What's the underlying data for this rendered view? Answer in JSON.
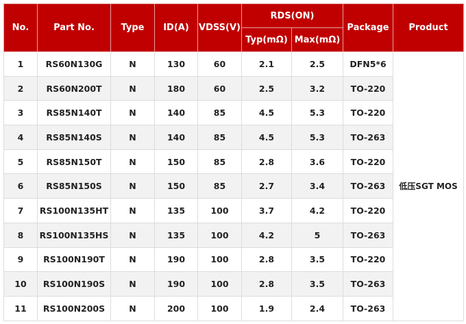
{
  "headers": {
    "no": "No.",
    "part_no": "Part No.",
    "type": "Type",
    "id": "ID(A)",
    "vdss": "VDSS(V)",
    "rds_on": "RDS(ON)",
    "typ": "Typ(mΩ)",
    "max": "Max(mΩ)",
    "package": "Package",
    "product": "Product"
  },
  "product": "低压SGT MOS",
  "colors": {
    "header_bg": "#c00000",
    "alt_row_bg": "#f2f2f2"
  },
  "rows": [
    {
      "no": "1",
      "part": "RS60N130G",
      "type": "N",
      "id": "130",
      "vdss": "60",
      "typ": "2.1",
      "max": "2.5",
      "package": "DFN5*6"
    },
    {
      "no": "2",
      "part": "RS60N200T",
      "type": "N",
      "id": "180",
      "vdss": "60",
      "typ": "2.5",
      "max": "3.2",
      "package": "TO-220"
    },
    {
      "no": "3",
      "part": "RS85N140T",
      "type": "N",
      "id": "140",
      "vdss": "85",
      "typ": "4.5",
      "max": "5.3",
      "package": "TO-220"
    },
    {
      "no": "4",
      "part": "RS85N140S",
      "type": "N",
      "id": "140",
      "vdss": "85",
      "typ": "4.5",
      "max": "5.3",
      "package": "TO-263"
    },
    {
      "no": "5",
      "part": "RS85N150T",
      "type": "N",
      "id": "150",
      "vdss": "85",
      "typ": "2.8",
      "max": "3.6",
      "package": "TO-220"
    },
    {
      "no": "6",
      "part": "RS85N150S",
      "type": "N",
      "id": "150",
      "vdss": "85",
      "typ": "2.7",
      "max": "3.4",
      "package": "TO-263"
    },
    {
      "no": "7",
      "part": "RS100N135HT",
      "type": "N",
      "id": "135",
      "vdss": "100",
      "typ": "3.7",
      "max": "4.2",
      "package": "TO-220"
    },
    {
      "no": "8",
      "part": "RS100N135HS",
      "type": "N",
      "id": "135",
      "vdss": "100",
      "typ": "4.2",
      "max": "5",
      "package": "TO-263"
    },
    {
      "no": "9",
      "part": "RS100N190T",
      "type": "N",
      "id": "190",
      "vdss": "100",
      "typ": "2.8",
      "max": "3.5",
      "package": "TO-220"
    },
    {
      "no": "10",
      "part": "RS100N190S",
      "type": "N",
      "id": "190",
      "vdss": "100",
      "typ": "2.8",
      "max": "3.5",
      "package": "TO-263"
    },
    {
      "no": "11",
      "part": "RS100N200S",
      "type": "N",
      "id": "200",
      "vdss": "100",
      "typ": "1.9",
      "max": "2.4",
      "package": "TO-263"
    }
  ]
}
